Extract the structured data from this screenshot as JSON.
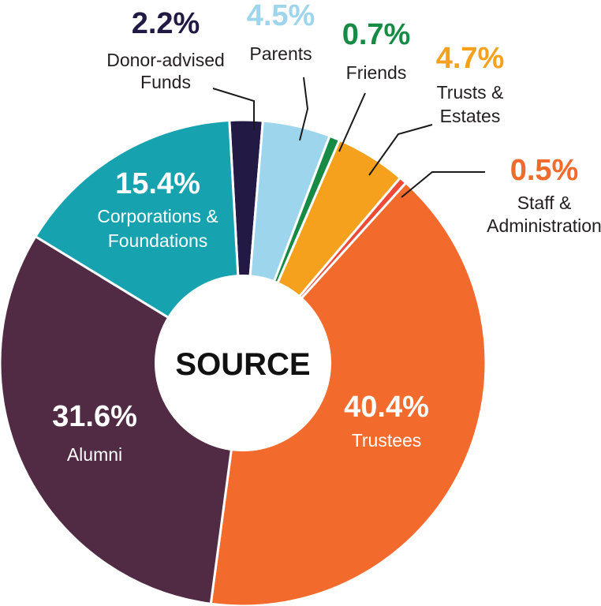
{
  "chart_data": {
    "type": "pie",
    "center_label": "SOURCE",
    "slices": [
      {
        "name": "Donor-advised Funds",
        "name_lines": [
          "Donor-advised",
          "Funds"
        ],
        "value": 2.2,
        "label": "2.2%",
        "color": "#221a45",
        "label_color": "#221a45",
        "name_color": "#231f20"
      },
      {
        "name": "Parents",
        "name_lines": [
          "Parents"
        ],
        "value": 4.5,
        "label": "4.5%",
        "color": "#9dd6ec",
        "label_color": "#9dd6ec",
        "name_color": "#231f20"
      },
      {
        "name": "Friends",
        "name_lines": [
          "Friends"
        ],
        "value": 0.7,
        "label": "0.7%",
        "color": "#178a45",
        "label_color": "#178a45",
        "name_color": "#231f20"
      },
      {
        "name": "Trusts & Estates",
        "name_lines": [
          "Trusts &",
          "Estates"
        ],
        "value": 4.7,
        "label": "4.7%",
        "color": "#f5a11e",
        "label_color": "#f5a11e",
        "name_color": "#231f20"
      },
      {
        "name": "Staff & Administration",
        "name_lines": [
          "Staff &",
          "Administration"
        ],
        "value": 0.5,
        "label": "0.5%",
        "color": "#ee4a36",
        "label_color": "#f26a2c",
        "name_color": "#231f20"
      },
      {
        "name": "Trustees",
        "name_lines": [
          "Trustees"
        ],
        "value": 40.4,
        "label": "40.4%",
        "color": "#f26a2c",
        "label_color": "#ffffff",
        "name_color": "#ffffff"
      },
      {
        "name": "Alumni",
        "name_lines": [
          "Alumni"
        ],
        "value": 31.6,
        "label": "31.6%",
        "color": "#512a43",
        "label_color": "#ffffff",
        "name_color": "#ffffff"
      },
      {
        "name": "Corporations & Foundations",
        "name_lines": [
          "Corporations &",
          "Foundations"
        ],
        "value": 15.4,
        "label": "15.4%",
        "color": "#17a2b0",
        "label_color": "#ffffff",
        "name_color": "#ffffff"
      }
    ]
  }
}
